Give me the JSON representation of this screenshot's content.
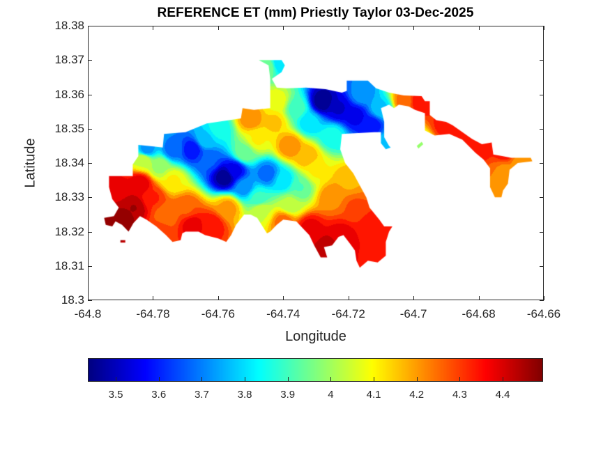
{
  "chart_data": {
    "type": "heatmap",
    "title": "REFERENCE ET (mm) Priestly Taylor 03-Dec-2025",
    "xlabel": "Longitude",
    "ylabel": "Latitude",
    "xlim": [
      -64.8,
      -64.66
    ],
    "ylim": [
      18.3,
      18.38
    ],
    "xticks": [
      -64.8,
      -64.78,
      -64.76,
      -64.74,
      -64.72,
      -64.7,
      -64.68,
      -64.66
    ],
    "xtick_labels": [
      "-64.8",
      "-64.78",
      "-64.76",
      "-64.74",
      "-64.72",
      "-64.7",
      "-64.68",
      "-64.66"
    ],
    "yticks": [
      18.3,
      18.31,
      18.32,
      18.33,
      18.34,
      18.35,
      18.36,
      18.37,
      18.38
    ],
    "ytick_labels": [
      "18.3",
      "18.31",
      "18.32",
      "18.33",
      "18.34",
      "18.35",
      "18.36",
      "18.37",
      "18.38"
    ],
    "grid": false,
    "colormap": "jet",
    "colorbar": {
      "orientation": "horizontal",
      "placement": "bottom",
      "range": [
        3.435,
        4.494
      ],
      "ticks": [
        3.5,
        3.6,
        3.7,
        3.8,
        3.9,
        4.0,
        4.1,
        4.2,
        4.3,
        4.4
      ],
      "tick_labels": [
        "3.5",
        "3.6",
        "3.7",
        "3.8",
        "3.9",
        "4",
        "4.1",
        "4.2",
        "4.3",
        "4.4"
      ]
    },
    "value_units": "mm",
    "region_outline": [
      [
        -64.7935,
        18.3362
      ],
      [
        -64.7862,
        18.3362
      ],
      [
        -64.7862,
        18.3396
      ],
      [
        -64.7845,
        18.342
      ],
      [
        -64.7845,
        18.3453
      ],
      [
        -64.7798,
        18.3448
      ],
      [
        -64.777,
        18.3445
      ],
      [
        -64.7766,
        18.3485
      ],
      [
        -64.77,
        18.349
      ],
      [
        -64.7635,
        18.3515
      ],
      [
        -64.753,
        18.353
      ],
      [
        -64.7525,
        18.356
      ],
      [
        -64.749,
        18.3555
      ],
      [
        -64.744,
        18.356
      ],
      [
        -64.744,
        18.3645
      ],
      [
        -64.7445,
        18.3685
      ],
      [
        -64.7475,
        18.37
      ],
      [
        -64.7405,
        18.37
      ],
      [
        -64.7395,
        18.3685
      ],
      [
        -64.7405,
        18.3665
      ],
      [
        -64.7435,
        18.3645
      ],
      [
        -64.742,
        18.362
      ],
      [
        -64.739,
        18.3618
      ],
      [
        -64.733,
        18.362
      ],
      [
        -64.727,
        18.3615
      ],
      [
        -64.722,
        18.3605
      ],
      [
        -64.7205,
        18.361
      ],
      [
        -64.7205,
        18.364
      ],
      [
        -64.714,
        18.364
      ],
      [
        -64.7115,
        18.3618
      ],
      [
        -64.7075,
        18.3605
      ],
      [
        -64.703,
        18.3597
      ],
      [
        -64.6975,
        18.3595
      ],
      [
        -64.6965,
        18.358
      ],
      [
        -64.695,
        18.358
      ],
      [
        -64.695,
        18.354
      ],
      [
        -64.693,
        18.3525
      ],
      [
        -64.69,
        18.352
      ],
      [
        -64.688,
        18.351
      ],
      [
        -64.682,
        18.347
      ],
      [
        -64.679,
        18.3455
      ],
      [
        -64.676,
        18.346
      ],
      [
        -64.6755,
        18.3425
      ],
      [
        -64.6725,
        18.342
      ],
      [
        -64.67,
        18.3415
      ],
      [
        -64.664,
        18.3415
      ],
      [
        -64.6635,
        18.3405
      ],
      [
        -64.668,
        18.34
      ],
      [
        -64.6705,
        18.338
      ],
      [
        -64.671,
        18.334
      ],
      [
        -64.6725,
        18.332
      ],
      [
        -64.673,
        18.33
      ],
      [
        -64.675,
        18.33
      ],
      [
        -64.6765,
        18.333
      ],
      [
        -64.6765,
        18.3385
      ],
      [
        -64.6785,
        18.341
      ],
      [
        -64.681,
        18.343
      ],
      [
        -64.685,
        18.3468
      ],
      [
        -64.689,
        18.3485
      ],
      [
        -64.6935,
        18.348
      ],
      [
        -64.6965,
        18.3495
      ],
      [
        -64.6965,
        18.3545
      ],
      [
        -64.6995,
        18.3555
      ],
      [
        -64.7015,
        18.3565
      ],
      [
        -64.7045,
        18.357
      ],
      [
        -64.706,
        18.356
      ],
      [
        -64.7075,
        18.357
      ],
      [
        -64.71,
        18.356
      ],
      [
        -64.709,
        18.352
      ],
      [
        -64.709,
        18.3475
      ],
      [
        -64.7075,
        18.345
      ],
      [
        -64.707,
        18.3445
      ],
      [
        -64.7085,
        18.344
      ],
      [
        -64.71,
        18.3458
      ],
      [
        -64.71,
        18.349
      ],
      [
        -64.712,
        18.349
      ],
      [
        -64.718,
        18.3487
      ],
      [
        -64.722,
        18.3485
      ],
      [
        -64.7225,
        18.344
      ],
      [
        -64.721,
        18.34
      ],
      [
        -64.7185,
        18.337
      ],
      [
        -64.7165,
        18.3335
      ],
      [
        -64.7145,
        18.33
      ],
      [
        -64.7135,
        18.327
      ],
      [
        -64.7105,
        18.3235
      ],
      [
        -64.709,
        18.3215
      ],
      [
        -64.7065,
        18.3215
      ],
      [
        -64.7075,
        18.32
      ],
      [
        -64.7085,
        18.317
      ],
      [
        -64.7085,
        18.313
      ],
      [
        -64.711,
        18.311
      ],
      [
        -64.714,
        18.3115
      ],
      [
        -64.7165,
        18.3095
      ],
      [
        -64.7175,
        18.3115
      ],
      [
        -64.718,
        18.3145
      ],
      [
        -64.7195,
        18.3165
      ],
      [
        -64.7215,
        18.319
      ],
      [
        -64.723,
        18.3185
      ],
      [
        -64.725,
        18.316
      ],
      [
        -64.7275,
        18.3155
      ],
      [
        -64.7265,
        18.3125
      ],
      [
        -64.7285,
        18.3125
      ],
      [
        -64.7305,
        18.316
      ],
      [
        -64.732,
        18.319
      ],
      [
        -64.736,
        18.323
      ],
      [
        -64.74,
        18.3235
      ],
      [
        -64.742,
        18.322
      ],
      [
        -64.744,
        18.32
      ],
      [
        -64.745,
        18.3195
      ],
      [
        -64.748,
        18.324
      ],
      [
        -64.75,
        18.325
      ],
      [
        -64.752,
        18.325
      ],
      [
        -64.7545,
        18.322
      ],
      [
        -64.756,
        18.319
      ],
      [
        -64.7575,
        18.317
      ],
      [
        -64.76,
        18.318
      ],
      [
        -64.764,
        18.319
      ],
      [
        -64.766,
        18.32
      ],
      [
        -64.77,
        18.32
      ],
      [
        -64.771,
        18.3195
      ],
      [
        -64.7715,
        18.3175
      ],
      [
        -64.774,
        18.317
      ],
      [
        -64.776,
        18.319
      ],
      [
        -64.779,
        18.3215
      ],
      [
        -64.782,
        18.3235
      ],
      [
        -64.784,
        18.3245
      ],
      [
        -64.786,
        18.3225
      ],
      [
        -64.7875,
        18.32
      ],
      [
        -64.7895,
        18.322
      ],
      [
        -64.7915,
        18.323
      ],
      [
        -64.7925,
        18.3215
      ],
      [
        -64.7945,
        18.322
      ],
      [
        -64.795,
        18.324
      ],
      [
        -64.792,
        18.3245
      ],
      [
        -64.7905,
        18.327
      ],
      [
        -64.7925,
        18.3295
      ],
      [
        -64.7935,
        18.333
      ]
    ],
    "islets": [
      [
        [
          -64.79,
          18.3175
        ],
        [
          -64.7885,
          18.3175
        ],
        [
          -64.7885,
          18.3168
        ],
        [
          -64.79,
          18.3168
        ]
      ],
      [
        [
          -64.6985,
          18.3442
        ],
        [
          -64.697,
          18.3455
        ],
        [
          -64.6975,
          18.3462
        ],
        [
          -64.699,
          18.345
        ]
      ]
    ],
    "value_samples": [
      {
        "lon": -64.79,
        "lat": 18.323,
        "value": 4.48
      },
      {
        "lon": -64.786,
        "lat": 18.327,
        "value": 4.45
      },
      {
        "lon": -64.791,
        "lat": 18.333,
        "value": 4.38
      },
      {
        "lon": -64.784,
        "lat": 18.334,
        "value": 4.4
      },
      {
        "lon": -64.78,
        "lat": 18.33,
        "value": 4.32
      },
      {
        "lon": -64.776,
        "lat": 18.325,
        "value": 4.24
      },
      {
        "lon": -64.778,
        "lat": 18.32,
        "value": 4.3
      },
      {
        "lon": -64.77,
        "lat": 18.327,
        "value": 4.27
      },
      {
        "lon": -64.768,
        "lat": 18.322,
        "value": 4.38
      },
      {
        "lon": -64.762,
        "lat": 18.322,
        "value": 4.35
      },
      {
        "lon": -64.757,
        "lat": 18.327,
        "value": 4.2
      },
      {
        "lon": -64.783,
        "lat": 18.341,
        "value": 4.05
      },
      {
        "lon": -64.778,
        "lat": 18.339,
        "value": 4.0
      },
      {
        "lon": -64.774,
        "lat": 18.335,
        "value": 4.1
      },
      {
        "lon": -64.782,
        "lat": 18.344,
        "value": 3.72
      },
      {
        "lon": -64.774,
        "lat": 18.344,
        "value": 3.68
      },
      {
        "lon": -64.768,
        "lat": 18.344,
        "value": 3.58
      },
      {
        "lon": -64.763,
        "lat": 18.341,
        "value": 3.66
      },
      {
        "lon": -64.758,
        "lat": 18.336,
        "value": 3.45
      },
      {
        "lon": -64.755,
        "lat": 18.338,
        "value": 3.55
      },
      {
        "lon": -64.764,
        "lat": 18.347,
        "value": 3.78
      },
      {
        "lon": -64.76,
        "lat": 18.35,
        "value": 3.85
      },
      {
        "lon": -64.752,
        "lat": 18.333,
        "value": 3.72
      },
      {
        "lon": -64.748,
        "lat": 18.33,
        "value": 3.88
      },
      {
        "lon": -64.747,
        "lat": 18.326,
        "value": 4.05
      },
      {
        "lon": -64.745,
        "lat": 18.337,
        "value": 3.68
      },
      {
        "lon": -64.74,
        "lat": 18.335,
        "value": 3.8
      },
      {
        "lon": -64.735,
        "lat": 18.333,
        "value": 3.92
      },
      {
        "lon": -64.738,
        "lat": 18.328,
        "value": 4.02
      },
      {
        "lon": -64.74,
        "lat": 18.323,
        "value": 4.25
      },
      {
        "lon": -64.752,
        "lat": 18.343,
        "value": 3.95
      },
      {
        "lon": -64.748,
        "lat": 18.347,
        "value": 4.1
      },
      {
        "lon": -64.75,
        "lat": 18.353,
        "value": 4.22
      },
      {
        "lon": -64.743,
        "lat": 18.352,
        "value": 4.15
      },
      {
        "lon": -64.738,
        "lat": 18.345,
        "value": 4.22
      },
      {
        "lon": -64.733,
        "lat": 18.342,
        "value": 4.18
      },
      {
        "lon": -64.73,
        "lat": 18.338,
        "value": 4.1
      },
      {
        "lon": -64.742,
        "lat": 18.358,
        "value": 4.08
      },
      {
        "lon": -64.736,
        "lat": 18.356,
        "value": 3.9
      },
      {
        "lon": -64.732,
        "lat": 18.352,
        "value": 3.8
      },
      {
        "lon": -64.728,
        "lat": 18.358,
        "value": 3.45
      },
      {
        "lon": -64.723,
        "lat": 18.356,
        "value": 3.52
      },
      {
        "lon": -64.718,
        "lat": 18.354,
        "value": 3.55
      },
      {
        "lon": -64.713,
        "lat": 18.351,
        "value": 3.58
      },
      {
        "lon": -64.716,
        "lat": 18.36,
        "value": 3.72
      },
      {
        "lon": -64.71,
        "lat": 18.356,
        "value": 3.78
      },
      {
        "lon": -64.708,
        "lat": 18.346,
        "value": 3.78
      },
      {
        "lon": -64.725,
        "lat": 18.348,
        "value": 3.85
      },
      {
        "lon": -64.745,
        "lat": 18.368,
        "value": 3.95
      },
      {
        "lon": -64.741,
        "lat": 18.369,
        "value": 3.8
      },
      {
        "lon": -64.725,
        "lat": 18.33,
        "value": 4.22
      },
      {
        "lon": -64.72,
        "lat": 18.335,
        "value": 4.18
      },
      {
        "lon": -64.718,
        "lat": 18.327,
        "value": 4.28
      },
      {
        "lon": -64.713,
        "lat": 18.322,
        "value": 4.35
      },
      {
        "lon": -64.722,
        "lat": 18.319,
        "value": 4.38
      },
      {
        "lon": -64.726,
        "lat": 18.315,
        "value": 4.45
      },
      {
        "lon": -64.713,
        "lat": 18.313,
        "value": 4.36
      },
      {
        "lon": -64.732,
        "lat": 18.321,
        "value": 4.38
      },
      {
        "lon": -64.703,
        "lat": 18.358,
        "value": 4.25
      },
      {
        "lon": -64.698,
        "lat": 18.358,
        "value": 4.36
      },
      {
        "lon": -64.69,
        "lat": 18.351,
        "value": 4.34
      },
      {
        "lon": -64.68,
        "lat": 18.345,
        "value": 4.35
      },
      {
        "lon": -64.672,
        "lat": 18.343,
        "value": 4.34
      },
      {
        "lon": -64.672,
        "lat": 18.338,
        "value": 4.22
      },
      {
        "lon": -64.668,
        "lat": 18.34,
        "value": 4.22
      },
      {
        "lon": -64.673,
        "lat": 18.333,
        "value": 4.22
      },
      {
        "lon": -64.698,
        "lat": 18.345,
        "value": 4.0
      }
    ]
  }
}
